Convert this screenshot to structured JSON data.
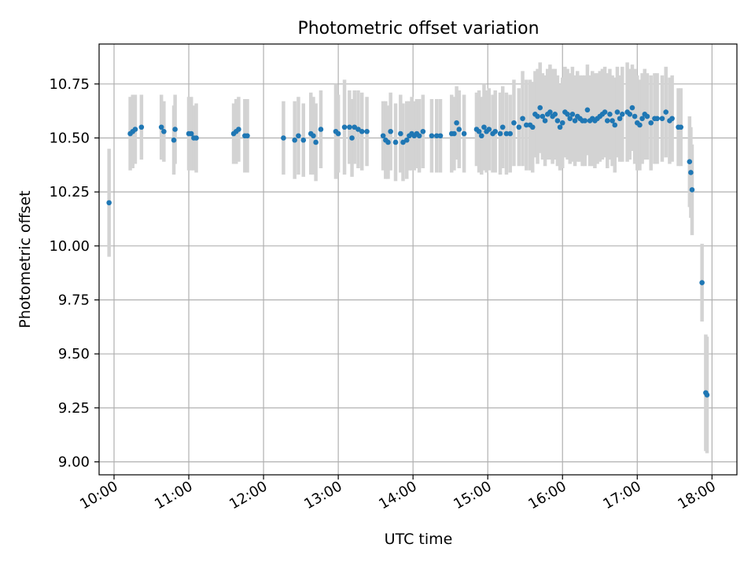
{
  "chart_data": {
    "type": "scatter",
    "title": "Photometric offset variation",
    "xlabel": "UTC time",
    "ylabel": "Photometric offset",
    "x_unit": "UTC hh:mm",
    "xlim": [
      "09:48",
      "18:20"
    ],
    "ylim": [
      8.94,
      10.935
    ],
    "x_ticks": [
      "10:00",
      "11:00",
      "12:00",
      "13:00",
      "14:00",
      "15:00",
      "16:00",
      "17:00",
      "18:00"
    ],
    "y_ticks": [
      9.0,
      9.25,
      9.5,
      9.75,
      10.0,
      10.25,
      10.5,
      10.75
    ],
    "y_tick_labels": [
      "9.00",
      "9.25",
      "9.50",
      "9.75",
      "10.00",
      "10.25",
      "10.50",
      "10.75"
    ],
    "grid": true,
    "colors": {
      "point": "#1f77b4",
      "errorbar": "#d3d3d3",
      "grid": "#b0b0b0"
    },
    "series": [
      {
        "points": [
          {
            "x": "09:56",
            "y": 10.2,
            "err": 0.25
          },
          {
            "x": "10:13",
            "y": 10.52,
            "err": 0.17
          },
          {
            "x": "10:15",
            "y": 10.53,
            "err": 0.17
          },
          {
            "x": "10:17",
            "y": 10.54,
            "err": 0.16
          },
          {
            "x": "10:22",
            "y": 10.55,
            "err": 0.15
          },
          {
            "x": "10:38",
            "y": 10.55,
            "err": 0.15
          },
          {
            "x": "10:40",
            "y": 10.53,
            "err": 0.14
          },
          {
            "x": "10:48",
            "y": 10.49,
            "err": 0.16
          },
          {
            "x": "10:49",
            "y": 10.54,
            "err": 0.16
          },
          {
            "x": "11:00",
            "y": 10.52,
            "err": 0.17
          },
          {
            "x": "11:02",
            "y": 10.52,
            "err": 0.17
          },
          {
            "x": "11:04",
            "y": 10.5,
            "err": 0.15
          },
          {
            "x": "11:06",
            "y": 10.5,
            "err": 0.16
          },
          {
            "x": "11:36",
            "y": 10.52,
            "err": 0.14
          },
          {
            "x": "11:38",
            "y": 10.53,
            "err": 0.15
          },
          {
            "x": "11:40",
            "y": 10.54,
            "err": 0.15
          },
          {
            "x": "11:45",
            "y": 10.51,
            "err": 0.17
          },
          {
            "x": "11:47",
            "y": 10.51,
            "err": 0.17
          },
          {
            "x": "12:16",
            "y": 10.5,
            "err": 0.17
          },
          {
            "x": "12:25",
            "y": 10.49,
            "err": 0.18
          },
          {
            "x": "12:28",
            "y": 10.51,
            "err": 0.18
          },
          {
            "x": "12:32",
            "y": 10.49,
            "err": 0.17
          },
          {
            "x": "12:38",
            "y": 10.52,
            "err": 0.19
          },
          {
            "x": "12:40",
            "y": 10.51,
            "err": 0.18
          },
          {
            "x": "12:42",
            "y": 10.48,
            "err": 0.18
          },
          {
            "x": "12:46",
            "y": 10.54,
            "err": 0.18
          },
          {
            "x": "12:58",
            "y": 10.53,
            "err": 0.22
          },
          {
            "x": "13:00",
            "y": 10.52,
            "err": 0.18
          },
          {
            "x": "13:05",
            "y": 10.55,
            "err": 0.22
          },
          {
            "x": "13:09",
            "y": 10.55,
            "err": 0.17
          },
          {
            "x": "13:11",
            "y": 10.5,
            "err": 0.18
          },
          {
            "x": "13:13",
            "y": 10.55,
            "err": 0.17
          },
          {
            "x": "13:16",
            "y": 10.54,
            "err": 0.18
          },
          {
            "x": "13:19",
            "y": 10.53,
            "err": 0.18
          },
          {
            "x": "13:23",
            "y": 10.53,
            "err": 0.16
          },
          {
            "x": "13:36",
            "y": 10.51,
            "err": 0.16
          },
          {
            "x": "13:38",
            "y": 10.49,
            "err": 0.18
          },
          {
            "x": "13:40",
            "y": 10.48,
            "err": 0.17
          },
          {
            "x": "13:42",
            "y": 10.53,
            "err": 0.18
          },
          {
            "x": "13:46",
            "y": 10.48,
            "err": 0.18
          },
          {
            "x": "13:50",
            "y": 10.52,
            "err": 0.18
          },
          {
            "x": "13:52",
            "y": 10.48,
            "err": 0.18
          },
          {
            "x": "13:55",
            "y": 10.49,
            "err": 0.18
          },
          {
            "x": "13:57",
            "y": 10.51,
            "err": 0.16
          },
          {
            "x": "13:59",
            "y": 10.52,
            "err": 0.17
          },
          {
            "x": "14:01",
            "y": 10.51,
            "err": 0.16
          },
          {
            "x": "14:03",
            "y": 10.52,
            "err": 0.16
          },
          {
            "x": "14:05",
            "y": 10.51,
            "err": 0.17
          },
          {
            "x": "14:08",
            "y": 10.53,
            "err": 0.17
          },
          {
            "x": "14:15",
            "y": 10.51,
            "err": 0.17
          },
          {
            "x": "14:19",
            "y": 10.51,
            "err": 0.17
          },
          {
            "x": "14:22",
            "y": 10.51,
            "err": 0.17
          },
          {
            "x": "14:31",
            "y": 10.52,
            "err": 0.18
          },
          {
            "x": "14:33",
            "y": 10.52,
            "err": 0.17
          },
          {
            "x": "14:35",
            "y": 10.57,
            "err": 0.17
          },
          {
            "x": "14:37",
            "y": 10.54,
            "err": 0.18
          },
          {
            "x": "14:41",
            "y": 10.52,
            "err": 0.18
          },
          {
            "x": "14:51",
            "y": 10.54,
            "err": 0.17
          },
          {
            "x": "14:53",
            "y": 10.53,
            "err": 0.19
          },
          {
            "x": "14:55",
            "y": 10.51,
            "err": 0.18
          },
          {
            "x": "14:57",
            "y": 10.55,
            "err": 0.2
          },
          {
            "x": "14:59",
            "y": 10.53,
            "err": 0.19
          },
          {
            "x": "15:01",
            "y": 10.54,
            "err": 0.19
          },
          {
            "x": "15:04",
            "y": 10.52,
            "err": 0.18
          },
          {
            "x": "15:06",
            "y": 10.53,
            "err": 0.19
          },
          {
            "x": "15:10",
            "y": 10.52,
            "err": 0.19
          },
          {
            "x": "15:12",
            "y": 10.55,
            "err": 0.19
          },
          {
            "x": "15:15",
            "y": 10.52,
            "err": 0.19
          },
          {
            "x": "15:18",
            "y": 10.52,
            "err": 0.18
          },
          {
            "x": "15:21",
            "y": 10.57,
            "err": 0.2
          },
          {
            "x": "15:25",
            "y": 10.55,
            "err": 0.18
          },
          {
            "x": "15:28",
            "y": 10.59,
            "err": 0.22
          },
          {
            "x": "15:31",
            "y": 10.56,
            "err": 0.21
          },
          {
            "x": "15:34",
            "y": 10.56,
            "err": 0.21
          },
          {
            "x": "15:36",
            "y": 10.55,
            "err": 0.21
          },
          {
            "x": "15:38",
            "y": 10.61,
            "err": 0.2
          },
          {
            "x": "15:40",
            "y": 10.6,
            "err": 0.22
          },
          {
            "x": "15:42",
            "y": 10.64,
            "err": 0.21
          },
          {
            "x": "15:44",
            "y": 10.6,
            "err": 0.2
          },
          {
            "x": "15:46",
            "y": 10.58,
            "err": 0.21
          },
          {
            "x": "15:48",
            "y": 10.61,
            "err": 0.21
          },
          {
            "x": "15:50",
            "y": 10.62,
            "err": 0.22
          },
          {
            "x": "15:52",
            "y": 10.6,
            "err": 0.22
          },
          {
            "x": "15:54",
            "y": 10.61,
            "err": 0.21
          },
          {
            "x": "15:56",
            "y": 10.58,
            "err": 0.21
          },
          {
            "x": "15:58",
            "y": 10.55,
            "err": 0.2
          },
          {
            "x": "16:00",
            "y": 10.57,
            "err": 0.21
          },
          {
            "x": "16:02",
            "y": 10.62,
            "err": 0.21
          },
          {
            "x": "16:04",
            "y": 10.61,
            "err": 0.21
          },
          {
            "x": "16:06",
            "y": 10.59,
            "err": 0.21
          },
          {
            "x": "16:08",
            "y": 10.61,
            "err": 0.22
          },
          {
            "x": "16:10",
            "y": 10.58,
            "err": 0.21
          },
          {
            "x": "16:12",
            "y": 10.6,
            "err": 0.21
          },
          {
            "x": "16:14",
            "y": 10.59,
            "err": 0.2
          },
          {
            "x": "16:16",
            "y": 10.58,
            "err": 0.21
          },
          {
            "x": "16:18",
            "y": 10.58,
            "err": 0.21
          },
          {
            "x": "16:20",
            "y": 10.63,
            "err": 0.21
          },
          {
            "x": "16:22",
            "y": 10.58,
            "err": 0.21
          },
          {
            "x": "16:24",
            "y": 10.59,
            "err": 0.22
          },
          {
            "x": "16:26",
            "y": 10.58,
            "err": 0.22
          },
          {
            "x": "16:28",
            "y": 10.59,
            "err": 0.21
          },
          {
            "x": "16:30",
            "y": 10.6,
            "err": 0.21
          },
          {
            "x": "16:32",
            "y": 10.61,
            "err": 0.21
          },
          {
            "x": "16:34",
            "y": 10.62,
            "err": 0.21
          },
          {
            "x": "16:36",
            "y": 10.58,
            "err": 0.22
          },
          {
            "x": "16:38",
            "y": 10.61,
            "err": 0.21
          },
          {
            "x": "16:40",
            "y": 10.58,
            "err": 0.21
          },
          {
            "x": "16:42",
            "y": 10.56,
            "err": 0.22
          },
          {
            "x": "16:44",
            "y": 10.62,
            "err": 0.21
          },
          {
            "x": "16:46",
            "y": 10.59,
            "err": 0.2
          },
          {
            "x": "16:48",
            "y": 10.61,
            "err": 0.22
          },
          {
            "x": "16:52",
            "y": 10.62,
            "err": 0.23
          },
          {
            "x": "16:54",
            "y": 10.61,
            "err": 0.21
          },
          {
            "x": "16:56",
            "y": 10.64,
            "err": 0.2
          },
          {
            "x": "16:58",
            "y": 10.6,
            "err": 0.22
          },
          {
            "x": "17:00",
            "y": 10.57,
            "err": 0.22
          },
          {
            "x": "17:02",
            "y": 10.56,
            "err": 0.21
          },
          {
            "x": "17:04",
            "y": 10.59,
            "err": 0.21
          },
          {
            "x": "17:06",
            "y": 10.61,
            "err": 0.21
          },
          {
            "x": "17:08",
            "y": 10.6,
            "err": 0.2
          },
          {
            "x": "17:11",
            "y": 10.57,
            "err": 0.22
          },
          {
            "x": "17:14",
            "y": 10.59,
            "err": 0.21
          },
          {
            "x": "17:16",
            "y": 10.59,
            "err": 0.21
          },
          {
            "x": "17:20",
            "y": 10.59,
            "err": 0.2
          },
          {
            "x": "17:23",
            "y": 10.62,
            "err": 0.21
          },
          {
            "x": "17:26",
            "y": 10.58,
            "err": 0.2
          },
          {
            "x": "17:28",
            "y": 10.59,
            "err": 0.2
          },
          {
            "x": "17:33",
            "y": 10.55,
            "err": 0.18
          },
          {
            "x": "17:35",
            "y": 10.55,
            "err": 0.18
          },
          {
            "x": "17:42",
            "y": 10.39,
            "err": 0.21
          },
          {
            "x": "17:43",
            "y": 10.34,
            "err": 0.21
          },
          {
            "x": "17:44",
            "y": 10.26,
            "err": 0.21
          },
          {
            "x": "17:52",
            "y": 9.83,
            "err": 0.18
          },
          {
            "x": "17:55",
            "y": 9.32,
            "err": 0.27
          },
          {
            "x": "17:56",
            "y": 9.31,
            "err": 0.27
          }
        ]
      }
    ]
  }
}
